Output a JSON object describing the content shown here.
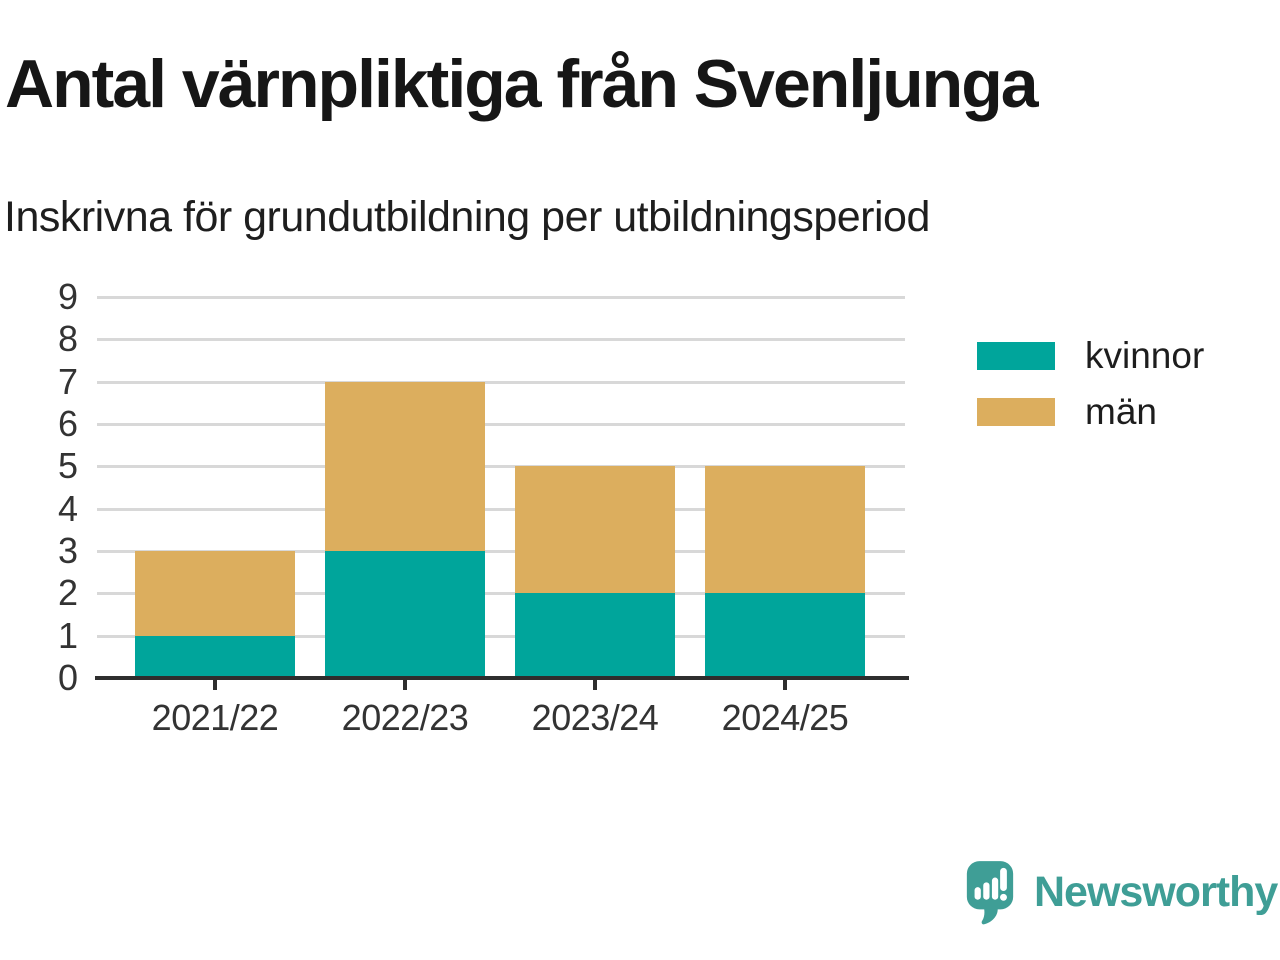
{
  "chart_data": {
    "type": "bar",
    "stacked": true,
    "title": "Antal värnpliktiga från Svenljunga",
    "subtitle": "Inskrivna för grundutbildning per utbildningsperiod",
    "categories": [
      "2021/22",
      "2022/23",
      "2023/24",
      "2024/25"
    ],
    "series": [
      {
        "name": "kvinnor",
        "color": "#00a59b",
        "values": [
          1,
          3,
          2,
          2
        ]
      },
      {
        "name": "män",
        "color": "#dcae5e",
        "values": [
          2,
          4,
          3,
          3
        ]
      }
    ],
    "totals": [
      3,
      7,
      5,
      5
    ],
    "xlabel": "",
    "ylabel": "",
    "ylim": [
      0,
      9
    ],
    "ytick_step": 1,
    "yticks": [
      "0",
      "1",
      "2",
      "3",
      "4",
      "5",
      "6",
      "7",
      "8",
      "9"
    ],
    "grid": "horizontal",
    "legend_position": "right",
    "axis_color": "#2e2e2e",
    "gridline_color": "#d8d8d8",
    "tick_label_color": "#333333"
  },
  "footer": {
    "brand": "Newsworthy",
    "brand_color": "#3f9e96",
    "icon": "newsworthy-logo-icon"
  }
}
